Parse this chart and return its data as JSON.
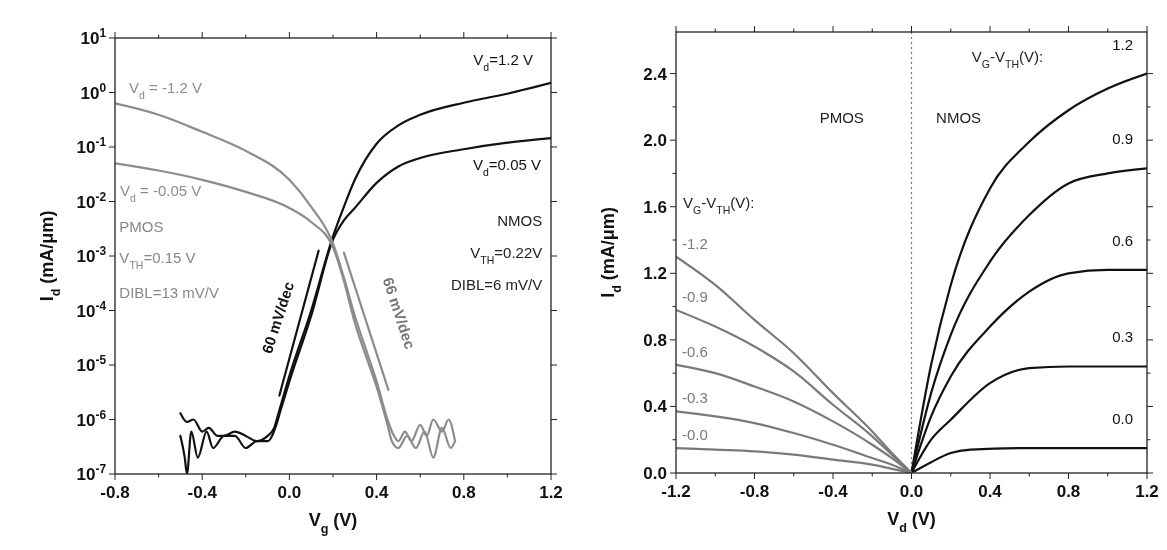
{
  "chart_data": [
    {
      "type": "line",
      "xlabel": "V$_{g}$ (V)",
      "ylabel": "I$_{d}$ (mA/μm)",
      "log": "y",
      "grid": false,
      "xlim": [
        -0.8,
        1.2
      ],
      "ylim": [
        1e-07,
        10
      ],
      "xticks": [
        {
          "value": -0.8,
          "label": "-0.8"
        },
        {
          "value": -0.6,
          "label": null
        },
        {
          "value": -0.4,
          "label": "-0.4"
        },
        {
          "value": -0.2,
          "label": null
        },
        {
          "value": 0,
          "label": "0.0"
        },
        {
          "value": 0.2,
          "label": null
        },
        {
          "value": 0.4,
          "label": "0.4"
        },
        {
          "value": 0.6,
          "label": null
        },
        {
          "value": 0.8,
          "label": "0.8"
        },
        {
          "value": 1.0,
          "label": null
        },
        {
          "value": 1.2,
          "label": "1.2"
        }
      ],
      "yticks": [
        {
          "value": 1e-07,
          "label": "10$^{-7}$"
        },
        {
          "value": 1e-06,
          "label": "10$^{-6}$"
        },
        {
          "value": 1e-05,
          "label": "10$^{-5}$"
        },
        {
          "value": 0.0001,
          "label": "10$^{-4}$"
        },
        {
          "value": 0.001,
          "label": "10$^{-3}$"
        },
        {
          "value": 0.01,
          "label": "10$^{-2}$"
        },
        {
          "value": 0.1,
          "label": "10$^{-1}$"
        },
        {
          "value": 1,
          "label": "10$^{0}$"
        },
        {
          "value": 10,
          "label": "10$^{1}$"
        }
      ],
      "series": [
        {
          "name": "V$_{d}$=1.2 V",
          "color": "#111111",
          "x": [
            -0.5,
            -0.47,
            -0.44,
            -0.4,
            -0.37,
            -0.33,
            -0.3,
            -0.25,
            -0.2,
            -0.15,
            -0.1,
            -0.07,
            -0.05,
            0,
            0.1,
            0.2,
            0.25,
            0.3,
            0.4,
            0.5,
            0.6,
            0.8,
            1.0,
            1.2
          ],
          "values": [
            1.3e-06,
            9e-07,
            1e-06,
            6e-07,
            7e-07,
            5e-07,
            5e-07,
            6e-07,
            5e-07,
            4e-07,
            5e-07,
            7e-07,
            1.3e-06,
            6.3e-06,
            0.0001,
            0.0023,
            0.008,
            0.025,
            0.115,
            0.25,
            0.39,
            0.65,
            0.95,
            1.5
          ]
        },
        {
          "name": "V$_{d}$=0.05 V",
          "color": "#111111",
          "x": [
            -0.5,
            -0.48,
            -0.47,
            -0.45,
            -0.42,
            -0.38,
            -0.35,
            -0.3,
            -0.25,
            -0.2,
            -0.15,
            -0.1,
            -0.06,
            -0.04,
            0,
            0.1,
            0.2,
            0.25,
            0.3,
            0.4,
            0.5,
            0.6,
            0.8,
            1.0,
            1.2
          ],
          "values": [
            5e-07,
            2e-07,
            1e-07,
            6e-07,
            2e-07,
            6e-07,
            3e-07,
            5e-07,
            5e-07,
            3e-07,
            4e-07,
            4e-07,
            8e-07,
            1.5e-06,
            5e-06,
            8e-05,
            0.002,
            0.0045,
            0.0076,
            0.022,
            0.044,
            0.063,
            0.091,
            0.12,
            0.145
          ]
        },
        {
          "name": "V$_{d}$ = -1.2 V",
          "color": "#8c8c8c",
          "x": [
            -0.8,
            -0.6,
            -0.4,
            -0.2,
            0,
            0.1,
            0.2,
            0.25,
            0.3,
            0.35,
            0.4,
            0.45,
            0.48,
            0.5,
            0.53,
            0.56,
            0.6,
            0.63,
            0.66,
            0.7,
            0.73,
            0.76
          ],
          "values": [
            0.63,
            0.39,
            0.19,
            0.085,
            0.025,
            0.008,
            0.0017,
            0.0004,
            8e-05,
            2e-05,
            5e-06,
            1e-06,
            5e-07,
            4e-07,
            6e-07,
            4e-07,
            8e-07,
            5e-07,
            1e-06,
            6e-07,
            1e-06,
            4e-07
          ]
        },
        {
          "name": "V$_{d}$ = -0.05 V",
          "color": "#8c8c8c",
          "x": [
            -0.8,
            -0.6,
            -0.4,
            -0.2,
            0,
            0.1,
            0.2,
            0.25,
            0.3,
            0.35,
            0.4,
            0.45,
            0.47,
            0.5,
            0.54,
            0.58,
            0.62,
            0.66,
            0.7,
            0.74,
            0.76
          ],
          "values": [
            0.05,
            0.037,
            0.025,
            0.015,
            0.0076,
            0.0042,
            0.00145,
            0.00035,
            6e-05,
            1.5e-05,
            4e-06,
            8e-07,
            4e-07,
            3e-07,
            5e-07,
            3e-07,
            6e-07,
            2e-07,
            7e-07,
            3e-07,
            4e-07
          ]
        },
        {
          "type": "line",
          "color": "#111111",
          "x": [
            -0.046,
            0.134
          ],
          "values": [
            2.75e-06,
            0.00125
          ]
        },
        {
          "type": "line",
          "color": "#8c8c8c",
          "x": [
            0.25,
            0.454
          ],
          "values": [
            0.00115,
            3.5e-06
          ]
        }
      ],
      "annotations": [
        "PMOS",
        "V$_{TH}$=0.15 V",
        "DIBL=13 mV/V",
        "NMOS",
        "V$_{TH}$=0.22V",
        "DIBL=6 mV/V",
        "60 mV/dec",
        "66 mV/dec"
      ]
    },
    {
      "type": "line",
      "xlabel": "V$_{d}$ (V)",
      "ylabel": "I$_{d}$ (mA/μm)",
      "grid": false,
      "xlim": [
        -1.2,
        1.2
      ],
      "ylim": [
        0,
        2.65
      ],
      "xticks": [
        {
          "value": -1.2,
          "label": "-1.2"
        },
        {
          "value": -1.0,
          "label": null
        },
        {
          "value": -0.8,
          "label": "-0.8"
        },
        {
          "value": -0.6,
          "label": null
        },
        {
          "value": -0.4,
          "label": "-0.4"
        },
        {
          "value": -0.2,
          "label": null
        },
        {
          "value": 0,
          "label": "0.0"
        },
        {
          "value": 0.2,
          "label": null
        },
        {
          "value": 0.4,
          "label": "0.4"
        },
        {
          "value": 0.6,
          "label": null
        },
        {
          "value": 0.8,
          "label": "0.8"
        },
        {
          "value": 1.0,
          "label": null
        },
        {
          "value": 1.2,
          "label": "1.2"
        }
      ],
      "yticks": [
        {
          "value": 0,
          "label": "0.0"
        },
        {
          "value": 0.2,
          "label": null
        },
        {
          "value": 0.4,
          "label": "0.4"
        },
        {
          "value": 0.6,
          "label": null
        },
        {
          "value": 0.8,
          "label": "0.8"
        },
        {
          "value": 1.0,
          "label": null
        },
        {
          "value": 1.2,
          "label": "1.2"
        },
        {
          "value": 1.4,
          "label": null
        },
        {
          "value": 1.6,
          "label": "1.6"
        },
        {
          "value": 1.8,
          "label": null
        },
        {
          "value": 2.0,
          "label": "2.0"
        },
        {
          "value": 2.2,
          "label": null
        },
        {
          "value": 2.4,
          "label": "2.4"
        }
      ],
      "series": [
        {
          "name": "1.2",
          "color": "#111111",
          "x": [
            0,
            0.1,
            0.2,
            0.4,
            0.6,
            0.8,
            1.0,
            1.2
          ],
          "values": [
            0,
            0.65,
            1.13,
            1.71,
            1.99,
            2.18,
            2.31,
            2.4
          ]
        },
        {
          "name": "0.9",
          "color": "#111111",
          "x": [
            0,
            0.1,
            0.2,
            0.4,
            0.6,
            0.8,
            1.0,
            1.2
          ],
          "values": [
            0,
            0.48,
            0.83,
            1.27,
            1.55,
            1.74,
            1.8,
            1.83
          ]
        },
        {
          "name": "0.6",
          "color": "#111111",
          "x": [
            0,
            0.1,
            0.2,
            0.4,
            0.6,
            0.8,
            1.0,
            1.2
          ],
          "values": [
            0,
            0.34,
            0.58,
            0.88,
            1.09,
            1.2,
            1.22,
            1.22
          ]
        },
        {
          "name": "0.3",
          "color": "#111111",
          "x": [
            0,
            0.1,
            0.2,
            0.4,
            0.6,
            0.8,
            1.0,
            1.2
          ],
          "values": [
            0,
            0.2,
            0.32,
            0.54,
            0.63,
            0.64,
            0.64,
            0.64
          ]
        },
        {
          "name": "0.0",
          "color": "#111111",
          "x": [
            0,
            0.1,
            0.2,
            0.3,
            0.6,
            0.8,
            1.0,
            1.2
          ],
          "values": [
            0,
            0.065,
            0.12,
            0.14,
            0.15,
            0.15,
            0.15,
            0.15
          ]
        },
        {
          "name": "-1.2",
          "color": "#7a7a7a",
          "x": [
            -1.2,
            -1.0,
            -0.8,
            -0.6,
            -0.4,
            -0.2,
            -0.1,
            0
          ],
          "values": [
            1.3,
            1.13,
            0.92,
            0.72,
            0.48,
            0.25,
            0.12,
            0
          ]
        },
        {
          "name": "-0.9",
          "color": "#7a7a7a",
          "x": [
            -1.2,
            -1.0,
            -0.8,
            -0.6,
            -0.4,
            -0.2,
            -0.1,
            0
          ],
          "values": [
            0.98,
            0.88,
            0.76,
            0.61,
            0.41,
            0.22,
            0.11,
            0
          ]
        },
        {
          "name": "-0.6",
          "color": "#7a7a7a",
          "x": [
            -1.2,
            -1.0,
            -0.8,
            -0.6,
            -0.4,
            -0.2,
            -0.1,
            0
          ],
          "values": [
            0.65,
            0.6,
            0.52,
            0.43,
            0.31,
            0.17,
            0.09,
            0
          ]
        },
        {
          "name": "-0.3",
          "color": "#7a7a7a",
          "x": [
            -1.2,
            -1.0,
            -0.8,
            -0.6,
            -0.4,
            -0.2,
            -0.1,
            0
          ],
          "values": [
            0.37,
            0.34,
            0.3,
            0.24,
            0.17,
            0.09,
            0.05,
            0
          ]
        },
        {
          "name": "-0.0",
          "color": "#7a7a7a",
          "x": [
            -1.2,
            -1.0,
            -0.8,
            -0.6,
            -0.4,
            -0.2,
            -0.1,
            0
          ],
          "values": [
            0.15,
            0.14,
            0.13,
            0.11,
            0.08,
            0.05,
            0.025,
            0
          ]
        }
      ],
      "ref_lines": [
        {
          "axis": "x",
          "value": 0,
          "color": "#777777",
          "line_style": "dotted"
        }
      ],
      "annotations": [
        "PMOS",
        "NMOS",
        "V$_{G}$-V$_{TH}$(V):",
        "V$_{G}$-V$_{TH}$(V):"
      ]
    }
  ]
}
